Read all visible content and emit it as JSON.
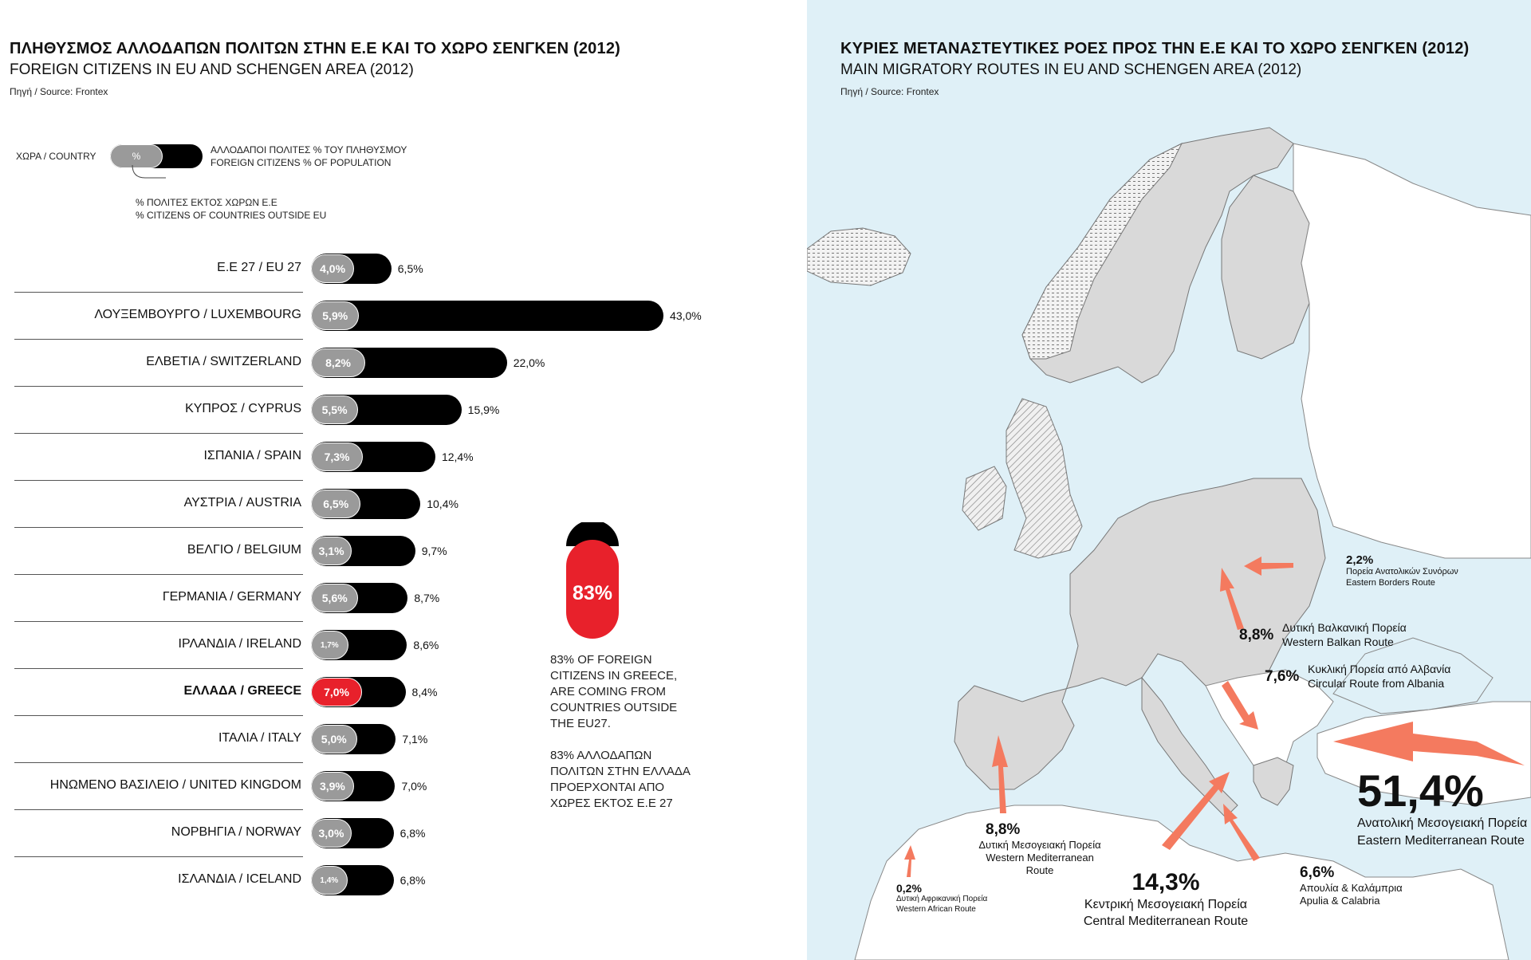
{
  "left_panel": {
    "title_gr": "ΠΛΗΘΥΣΜΟΣ ΑΛΛΟΔΑΠΩΝ ΠΟΛΙΤΩΝ ΣΤΗΝ Ε.Ε ΚΑΙ ΤΟ ΧΩΡΟ ΣΕΝΓΚΕΝ (2012)",
    "title_en": "FOREIGN CITIZENS IN EU AND SCHENGEN AREA (2012)",
    "source": "Πηγή / Source: Frontex",
    "legend": {
      "country": "ΧΩΡΑ / COUNTRY",
      "pct_symbol": "%",
      "foreign_gr": "ΑΛΛΟΔΑΠΟΙ ΠΟΛΙΤΕΣ % ΤΟΥ ΠΛΗΘΥΣΜΟΥ",
      "foreign_en": "FOREIGN CITIZENS % OF POPULATION",
      "outside_gr": "% ΠΟΛΙΤΕΣ ΕΚΤΟΣ ΧΩΡΩΝ Ε.Ε",
      "outside_en": "% CITIZENS OF COUNTRIES OUTSIDE EU"
    },
    "callout": {
      "value": "83%",
      "text_en": "83% OF FOREIGN\nCITIZENS IN GREECE,\nARE COMING FROM\nCOUNTRIES OUTSIDE\nTHE EU27.",
      "text_gr": "83% ΑΛΛΟΔΑΠΩΝ\nΠΟΛΙΤΩΝ ΣΤΗΝ ΕΛΛΑΔΑ\nΠΡΟΕΡΧΟΝΤΑΙ ΑΠΟ\nΧΩΡΕΣ ΕΚΤΟΣ Ε.Ε 27"
    }
  },
  "right_panel": {
    "title_gr": "ΚΥΡΙΕΣ ΜΕΤΑΝΑΣΤΕΥΤΙΚΕΣ ΡΟΕΣ ΠΡΟΣ ΤΗΝ Ε.Ε ΚΑΙ ΤΟ ΧΩΡΟ ΣΕΝΓΚΕΝ (2012)",
    "title_en": "MAIN MIGRATORY ROUTES IN EU AND SCHENGEN AREA (2012)",
    "source": "Πηγή / Source: Frontex",
    "routes": [
      {
        "pct": "2,2%",
        "name_gr": "Πορεία Ανατολικών Συνόρων",
        "name_en": "Eastern Borders Route"
      },
      {
        "pct": "8,8%",
        "name_gr": "Δυτική Βαλκανική Πορεία",
        "name_en": "Western Balkan Route"
      },
      {
        "pct": "7,6%",
        "name_gr": "Κυκλική Πορεία από Αλβανία",
        "name_en": "Circular Route from Albania"
      },
      {
        "pct": "51,4%",
        "name_gr": "Ανατολική Μεσογειακή Πορεία",
        "name_en": "Eastern Mediterranean Route"
      },
      {
        "pct": "8,8%",
        "name_gr": "Δυτική Μεσογειακή Πορεία",
        "name_en": "Western Mediterranean Route"
      },
      {
        "pct": "14,3%",
        "name_gr": "Κεντρική Μεσογειακή Πορεία",
        "name_en": "Central Mediterranean Route"
      },
      {
        "pct": "6,6%",
        "name_gr": "Απουλία & Καλάμπρια",
        "name_en": "Apulia & Calabria"
      },
      {
        "pct": "0,2%",
        "name_gr": "Δυτική Αφρικανική Πορεία",
        "name_en": "Western African Route"
      }
    ]
  },
  "colors": {
    "highlight": "#e8212b",
    "arrow": "#f47a5f",
    "gray_pill": "#9a9a9a",
    "land": "#d9d9d9",
    "sea": "#dff0f7"
  },
  "chart_data": {
    "type": "bar",
    "title": "FOREIGN CITIZENS IN EU AND SCHENGEN AREA (2012)",
    "highlight": "ΕΛΛΑΔΑ / GREECE",
    "rows": [
      {
        "label": "Ε.Ε 27 / EU 27",
        "outside": 4.0,
        "outside_label": "4,0%",
        "total": 6.5,
        "total_label": "6,5%"
      },
      {
        "label": "ΛΟΥΞΕΜΒΟΥΡΓΟ / LUXEMBOURG",
        "outside": 5.9,
        "outside_label": "5,9%",
        "total": 43.0,
        "total_label": "43,0%"
      },
      {
        "label": "ΕΛΒΕΤΙΑ / SWITZERLAND",
        "outside": 8.2,
        "outside_label": "8,2%",
        "total": 22.0,
        "total_label": "22,0%"
      },
      {
        "label": "ΚΥΠΡΟΣ / CYPRUS",
        "outside": 5.5,
        "outside_label": "5,5%",
        "total": 15.9,
        "total_label": "15,9%"
      },
      {
        "label": "ΙΣΠΑΝΙΑ / SPAIN",
        "outside": 7.3,
        "outside_label": "7,3%",
        "total": 12.4,
        "total_label": "12,4%"
      },
      {
        "label": "ΑΥΣΤΡΙΑ / AUSTRIA",
        "outside": 6.5,
        "outside_label": "6,5%",
        "total": 10.4,
        "total_label": "10,4%"
      },
      {
        "label": "ΒΕΛΓΙΟ / BELGIUM",
        "outside": 3.1,
        "outside_label": "3,1%",
        "total": 9.7,
        "total_label": "9,7%"
      },
      {
        "label": "ΓΕΡΜΑΝΙΑ / GERMANY",
        "outside": 5.6,
        "outside_label": "5,6%",
        "total": 8.7,
        "total_label": "8,7%"
      },
      {
        "label": "ΙΡΛΑΝΔΙΑ / IRELAND",
        "outside": 1.7,
        "outside_label": "1,7%",
        "total": 8.6,
        "total_label": "8,6%"
      },
      {
        "label": "ΕΛΛΑΔΑ / GREECE",
        "outside": 7.0,
        "outside_label": "7,0%",
        "total": 8.4,
        "total_label": "8,4%"
      },
      {
        "label": "ΙΤΑΛΙΑ / ITALY",
        "outside": 5.0,
        "outside_label": "5,0%",
        "total": 7.1,
        "total_label": "7,1%"
      },
      {
        "label": "ΗΝΩΜΕΝΟ ΒΑΣΙΛΕΙΟ / UNITED KINGDOM",
        "outside": 3.9,
        "outside_label": "3,9%",
        "total": 7.0,
        "total_label": "7,0%"
      },
      {
        "label": "ΝΟΡΒΗΓΙΑ / NORWAY",
        "outside": 3.0,
        "outside_label": "3,0%",
        "total": 6.8,
        "total_label": "6,8%"
      },
      {
        "label": "ΙΣΛΑΝΔΙΑ / ICELAND",
        "outside": 1.4,
        "outside_label": "1,4%",
        "total": 6.8,
        "total_label": "6,8%"
      }
    ]
  }
}
